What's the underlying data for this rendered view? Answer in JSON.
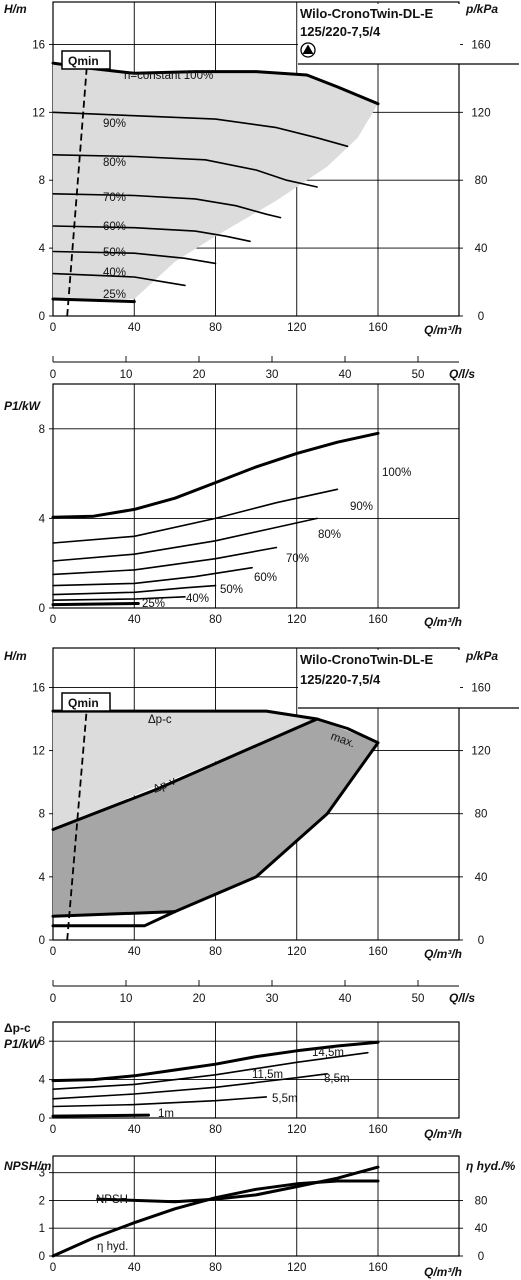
{
  "chart_data": [
    {
      "id": "chart1",
      "type": "line",
      "title_lines": [
        "Wilo-CronoTwin-DL-E",
        "125/220-7,5/4"
      ],
      "ylabel": "H/m",
      "ylabel_right": "p/kPa",
      "xlabel": "Q/m³/h",
      "xlim": [
        0,
        170
      ],
      "ylim": [
        0,
        18.5
      ],
      "xticks": [
        0,
        40,
        80,
        120,
        160
      ],
      "yticks": [
        0,
        4,
        8,
        12,
        16
      ],
      "yticks_right": [
        0,
        40,
        80,
        120,
        160
      ],
      "qmin_label": "Qmin",
      "qmin_line": [
        [
          7,
          0
        ],
        [
          17,
          15.2
        ]
      ],
      "region": [
        [
          0,
          14.9
        ],
        [
          18,
          14.6
        ],
        [
          40,
          14.3
        ],
        [
          70,
          14.4
        ],
        [
          100,
          14.4
        ],
        [
          125,
          14.2
        ],
        [
          140,
          13.5
        ],
        [
          160,
          12.5
        ],
        [
          150,
          10.5
        ],
        [
          135,
          8.8
        ],
        [
          110,
          6.8
        ],
        [
          80,
          4.7
        ],
        [
          60,
          3.2
        ],
        [
          40,
          1.0
        ],
        [
          0,
          1.0
        ]
      ],
      "curves": [
        {
          "label": "n=constant 100%",
          "points": [
            [
              0,
              14.9
            ],
            [
              18,
              14.6
            ],
            [
              40,
              14.3
            ],
            [
              70,
              14.4
            ],
            [
              100,
              14.4
            ],
            [
              125,
              14.2
            ],
            [
              140,
              13.5
            ],
            [
              160,
              12.5
            ]
          ],
          "weight": "bold"
        },
        {
          "label": "90%",
          "points": [
            [
              0,
              12.0
            ],
            [
              40,
              11.8
            ],
            [
              80,
              11.6
            ],
            [
              110,
              11.1
            ],
            [
              130,
              10.5
            ],
            [
              145,
              10.0
            ]
          ],
          "weight": "normal"
        },
        {
          "label": "80%",
          "points": [
            [
              0,
              9.5
            ],
            [
              40,
              9.4
            ],
            [
              75,
              9.2
            ],
            [
              100,
              8.6
            ],
            [
              115,
              8.0
            ],
            [
              130,
              7.6
            ]
          ],
          "weight": "normal"
        },
        {
          "label": "70%",
          "points": [
            [
              0,
              7.2
            ],
            [
              40,
              7.1
            ],
            [
              70,
              6.9
            ],
            [
              90,
              6.5
            ],
            [
              105,
              6.0
            ],
            [
              112,
              5.8
            ]
          ],
          "weight": "normal"
        },
        {
          "label": "60%",
          "points": [
            [
              0,
              5.3
            ],
            [
              40,
              5.2
            ],
            [
              70,
              5.0
            ],
            [
              85,
              4.7
            ],
            [
              97,
              4.4
            ]
          ],
          "weight": "normal"
        },
        {
          "label": "50%",
          "points": [
            [
              0,
              3.8
            ],
            [
              40,
              3.7
            ],
            [
              65,
              3.4
            ],
            [
              80,
              3.1
            ]
          ],
          "weight": "normal"
        },
        {
          "label": "40%",
          "points": [
            [
              0,
              2.5
            ],
            [
              40,
              2.3
            ],
            [
              55,
              2.0
            ],
            [
              65,
              1.8
            ]
          ],
          "weight": "normal"
        },
        {
          "label": "25%",
          "points": [
            [
              0,
              1.0
            ],
            [
              40,
              0.85
            ]
          ],
          "weight": "bold"
        }
      ],
      "secondary_x": {
        "label": "Q/l/s",
        "ticks": [
          0,
          10,
          20,
          30,
          40,
          50
        ]
      }
    },
    {
      "id": "chart2",
      "type": "line",
      "ylabel": "P1/kW",
      "xlabel": "Q/m³/h",
      "xlim": [
        0,
        170
      ],
      "ylim": [
        0,
        10
      ],
      "xticks": [
        0,
        40,
        80,
        120,
        160
      ],
      "yticks": [
        0,
        4,
        8
      ],
      "curves": [
        {
          "label": "100%",
          "points": [
            [
              0,
              4.05
            ],
            [
              20,
              4.1
            ],
            [
              40,
              4.4
            ],
            [
              60,
              4.9
            ],
            [
              80,
              5.6
            ],
            [
              100,
              6.3
            ],
            [
              120,
              6.9
            ],
            [
              140,
              7.4
            ],
            [
              160,
              7.8
            ]
          ],
          "weight": "bold"
        },
        {
          "label": "90%",
          "points": [
            [
              0,
              2.9
            ],
            [
              40,
              3.2
            ],
            [
              80,
              4.0
            ],
            [
              110,
              4.7
            ],
            [
              140,
              5.3
            ]
          ],
          "weight": "normal"
        },
        {
          "label": "80%",
          "points": [
            [
              0,
              2.1
            ],
            [
              40,
              2.4
            ],
            [
              80,
              3.0
            ],
            [
              110,
              3.6
            ],
            [
              130,
              4.0
            ]
          ],
          "weight": "normal"
        },
        {
          "label": "70%",
          "points": [
            [
              0,
              1.5
            ],
            [
              40,
              1.7
            ],
            [
              80,
              2.2
            ],
            [
              110,
              2.7
            ]
          ],
          "weight": "normal"
        },
        {
          "label": "60%",
          "points": [
            [
              0,
              1.0
            ],
            [
              40,
              1.1
            ],
            [
              70,
              1.4
            ],
            [
              98,
              1.8
            ]
          ],
          "weight": "normal"
        },
        {
          "label": "50%",
          "points": [
            [
              0,
              0.6
            ],
            [
              40,
              0.7
            ],
            [
              65,
              0.9
            ],
            [
              80,
              1.0
            ]
          ],
          "weight": "normal"
        },
        {
          "label": "40%",
          "points": [
            [
              0,
              0.35
            ],
            [
              40,
              0.4
            ],
            [
              65,
              0.5
            ]
          ],
          "weight": "normal"
        },
        {
          "label": "25%",
          "points": [
            [
              0,
              0.15
            ],
            [
              42,
              0.2
            ]
          ],
          "weight": "bold"
        }
      ]
    },
    {
      "id": "chart3",
      "type": "line",
      "title_lines": [
        "Wilo-CronoTwin-DL-E",
        "125/220-7,5/4"
      ],
      "ylabel": "H/m",
      "ylabel_right": "p/kPa",
      "xlabel": "Q/m³/h",
      "xlim": [
        0,
        170
      ],
      "ylim": [
        0,
        18.5
      ],
      "xticks": [
        0,
        40,
        80,
        120,
        160
      ],
      "yticks": [
        0,
        4,
        8,
        12,
        16
      ],
      "yticks_right": [
        0,
        40,
        80,
        120,
        160
      ],
      "qmin_label": "Qmin",
      "qmin_line": [
        [
          7,
          0
        ],
        [
          17,
          15.2
        ]
      ],
      "light_region": [
        [
          0,
          14.5
        ],
        [
          105,
          14.5
        ],
        [
          130,
          14.0
        ],
        [
          0,
          7.0
        ]
      ],
      "dark_region": [
        [
          0,
          7.0
        ],
        [
          50,
          9.5
        ],
        [
          130,
          14.0
        ],
        [
          160,
          12.5
        ],
        [
          135,
          8.0
        ],
        [
          100,
          4.0
        ],
        [
          60,
          1.8
        ],
        [
          0,
          1.5
        ]
      ],
      "curves": [
        {
          "label": "Δp-c",
          "points": [
            [
              0,
              14.5
            ],
            [
              105,
              14.5
            ],
            [
              130,
              14.0
            ]
          ],
          "weight": "bold"
        },
        {
          "label": "Δp-v",
          "points": [
            [
              0,
              7.0
            ],
            [
              50,
              9.5
            ],
            [
              130,
              14.0
            ]
          ],
          "weight": "bold"
        },
        {
          "label": "max.",
          "points": [
            [
              130,
              14.0
            ],
            [
              145,
              13.4
            ],
            [
              160,
              12.5
            ],
            [
              135,
              8.0
            ],
            [
              100,
              4.0
            ],
            [
              60,
              1.8
            ]
          ],
          "weight": "bold"
        },
        {
          "label": "",
          "points": [
            [
              0,
              1.5
            ],
            [
              60,
              1.8
            ]
          ],
          "weight": "bold"
        },
        {
          "label": "",
          "points": [
            [
              0,
              0.9
            ],
            [
              45,
              0.9
            ],
            [
              60,
              1.8
            ]
          ],
          "weight": "bold"
        }
      ],
      "secondary_x": {
        "label": "Q/l/s",
        "ticks": [
          0,
          10,
          20,
          30,
          40,
          50
        ]
      }
    },
    {
      "id": "chart4",
      "type": "line",
      "ylabel_lines": [
        "Δp-c",
        "P1/kW"
      ],
      "xlabel": "Q/m³/h",
      "xlim": [
        0,
        170
      ],
      "ylim": [
        0,
        10
      ],
      "xticks": [
        0,
        40,
        80,
        120,
        160
      ],
      "yticks": [
        0,
        4,
        8
      ],
      "curves": [
        {
          "label": "14,5m",
          "points": [
            [
              0,
              3.9
            ],
            [
              20,
              4.0
            ],
            [
              40,
              4.4
            ],
            [
              60,
              5.0
            ],
            [
              80,
              5.6
            ],
            [
              100,
              6.4
            ],
            [
              120,
              7.0
            ],
            [
              140,
              7.5
            ],
            [
              160,
              7.9
            ]
          ],
          "weight": "bold"
        },
        {
          "label": "11,5m",
          "points": [
            [
              0,
              3.0
            ],
            [
              40,
              3.5
            ],
            [
              80,
              4.5
            ],
            [
              120,
              5.8
            ],
            [
              155,
              6.8
            ]
          ],
          "weight": "normal"
        },
        {
          "label": "8,5m",
          "points": [
            [
              0,
              2.0
            ],
            [
              40,
              2.5
            ],
            [
              80,
              3.2
            ],
            [
              120,
              4.2
            ],
            [
              135,
              4.6
            ]
          ],
          "weight": "normal"
        },
        {
          "label": "5,5m",
          "points": [
            [
              0,
              1.2
            ],
            [
              40,
              1.4
            ],
            [
              80,
              1.8
            ],
            [
              105,
              2.2
            ]
          ],
          "weight": "normal"
        },
        {
          "label": "1m",
          "points": [
            [
              0,
              0.2
            ],
            [
              47,
              0.3
            ]
          ],
          "weight": "bold"
        }
      ]
    },
    {
      "id": "chart5",
      "type": "line",
      "ylabel": "NPSH/m",
      "ylabel_right": "η hyd./%",
      "xlabel": "Q/m³/h",
      "xlim": [
        0,
        170
      ],
      "ylim": [
        0,
        3.6
      ],
      "xticks": [
        0,
        40,
        80,
        120,
        160
      ],
      "yticks": [
        0,
        1,
        2,
        3
      ],
      "yticks_right": [
        0,
        40,
        80
      ],
      "curves": [
        {
          "label": "NPSH",
          "points": [
            [
              22,
              2.05
            ],
            [
              40,
              2.0
            ],
            [
              60,
              1.95
            ],
            [
              80,
              2.05
            ],
            [
              100,
              2.2
            ],
            [
              120,
              2.5
            ],
            [
              140,
              2.8
            ],
            [
              160,
              3.2
            ]
          ],
          "weight": "bold"
        },
        {
          "label": "η hyd.",
          "points": [
            [
              0,
              0
            ],
            [
              20,
              0.65
            ],
            [
              40,
              1.2
            ],
            [
              60,
              1.7
            ],
            [
              80,
              2.1
            ],
            [
              100,
              2.4
            ],
            [
              120,
              2.6
            ],
            [
              140,
              2.7
            ],
            [
              160,
              2.7
            ]
          ],
          "weight": "bold"
        }
      ]
    }
  ]
}
